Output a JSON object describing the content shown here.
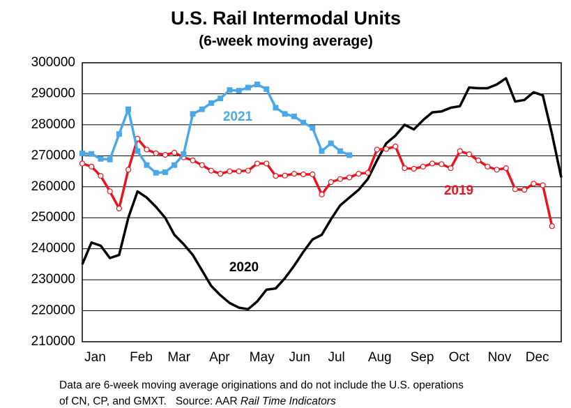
{
  "chart_data": {
    "type": "line",
    "title": "U.S. Rail Intermodal Units",
    "subtitle": "(6-week moving average)",
    "x": [
      1,
      2,
      3,
      4,
      5,
      6,
      7,
      8,
      9,
      10,
      11,
      12,
      13,
      14,
      15,
      16,
      17,
      18,
      19,
      20,
      21,
      22,
      23,
      24,
      25,
      26,
      27,
      28,
      29,
      30,
      31,
      32,
      33,
      34,
      35,
      36,
      37,
      38,
      39,
      40,
      41,
      42,
      43,
      44,
      45,
      46,
      47,
      48,
      49,
      50,
      51,
      52,
      53
    ],
    "xlim": [
      1,
      53
    ],
    "xticks": [
      {
        "value": 2.4,
        "label": "Jan"
      },
      {
        "value": 7.4,
        "label": "Feb"
      },
      {
        "value": 11.5,
        "label": "Mar"
      },
      {
        "value": 15.9,
        "label": "Apr"
      },
      {
        "value": 20.5,
        "label": "May"
      },
      {
        "value": 24.6,
        "label": "Jun"
      },
      {
        "value": 28.6,
        "label": "Jul"
      },
      {
        "value": 33.3,
        "label": "Aug"
      },
      {
        "value": 37.9,
        "label": "Sep"
      },
      {
        "value": 41.9,
        "label": "Oct"
      },
      {
        "value": 46.3,
        "label": "Nov"
      },
      {
        "value": 50.4,
        "label": "Dec"
      }
    ],
    "ylim": [
      210000,
      300000
    ],
    "yticks": [
      210000,
      220000,
      230000,
      240000,
      250000,
      260000,
      270000,
      280000,
      290000,
      300000
    ],
    "grid": true,
    "series": [
      {
        "name": "2020",
        "color": "#000000",
        "marker": "none",
        "values": [
          235000,
          242000,
          241000,
          237000,
          238000,
          250000,
          258500,
          256500,
          253500,
          250000,
          244500,
          241500,
          238000,
          233000,
          228000,
          225000,
          222500,
          221000,
          220500,
          223000,
          226800,
          227200,
          230500,
          234500,
          239000,
          243000,
          244500,
          249500,
          254000,
          256500,
          259000,
          262500,
          268500,
          274000,
          276500,
          280000,
          278500,
          281500,
          284000,
          284300,
          285500,
          286000,
          292000,
          291800,
          291800,
          293000,
          295000,
          287500,
          288000,
          290500,
          289500,
          277000,
          263000
        ]
      },
      {
        "name": "2019",
        "color": "#e8141e",
        "marker": "circle",
        "values": [
          267500,
          266500,
          263500,
          258500,
          253000,
          265500,
          275500,
          272000,
          270800,
          270300,
          271000,
          269500,
          268500,
          267000,
          265200,
          264200,
          265000,
          265000,
          265200,
          267500,
          267500,
          263500,
          263600,
          264200,
          264000,
          264000,
          257500,
          261500,
          262500,
          263000,
          264200,
          264500,
          272000,
          272200,
          273000,
          266000,
          265800,
          266500,
          267500,
          267300,
          266000,
          271500,
          270500,
          268500,
          266500,
          265500,
          266000,
          259200,
          259000,
          261000,
          260500,
          247300,
          null
        ]
      },
      {
        "name": "2021",
        "color": "#4aa8e8",
        "marker": "square",
        "values": [
          270800,
          270600,
          269000,
          268800,
          277000,
          285000,
          271500,
          267000,
          264500,
          264700,
          267000,
          270500,
          283500,
          285000,
          287000,
          288500,
          291200,
          291000,
          292000,
          293000,
          291500,
          285500,
          283500,
          282700,
          280700,
          279000,
          271500,
          274000,
          271500,
          270200,
          null,
          null,
          null,
          null,
          null,
          null,
          null,
          null,
          null,
          null,
          null,
          null,
          null,
          null,
          null,
          null,
          null,
          null,
          null,
          null,
          null,
          null,
          null
        ]
      }
    ],
    "footnote": {
      "line1": "Data are 6-week moving average originations and do not include the U.S. operations",
      "line2": "of CN, CP, and GMXT.   Source: AAR ",
      "italic": "Rail Time Indicators"
    }
  }
}
